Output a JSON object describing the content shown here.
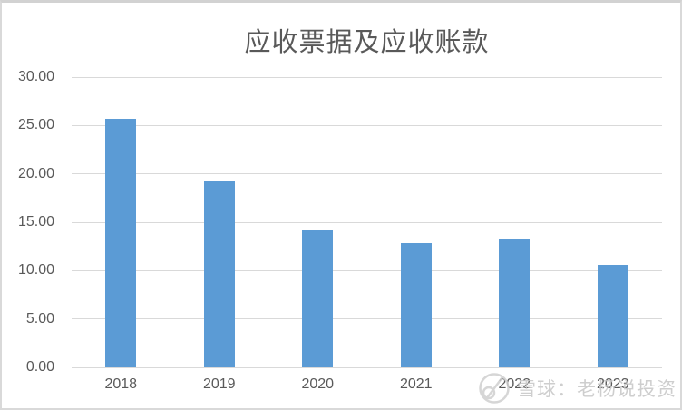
{
  "title": "应收票据及应收账款",
  "chart_data": {
    "type": "bar",
    "title": "应收票据及应收账款",
    "categories": [
      "2018",
      "2019",
      "2020",
      "2021",
      "2022",
      "2023"
    ],
    "values": [
      25.7,
      19.3,
      14.2,
      12.8,
      13.2,
      10.6
    ],
    "series_name": "应收票据及应收账款",
    "xlabel": "",
    "ylabel": "",
    "ylim": [
      0,
      30
    ],
    "ytick_values": [
      0,
      5,
      10,
      15,
      20,
      25,
      30
    ],
    "ytick_labels": [
      "0.00",
      "5.00",
      "10.00",
      "15.00",
      "20.00",
      "25.00",
      "30.00"
    ],
    "grid": true,
    "legend": "none",
    "bar_color": "#5b9bd5"
  },
  "watermark": {
    "icon": "xueqiu-snowball-logo-icon",
    "source_label": "雪球：老杨说投资"
  },
  "colors": {
    "bar": "#5b9bd5",
    "gridline": "#d9d9d9",
    "axis_text": "#595959",
    "title_text": "#595959",
    "frame_border": "#d9d9d9",
    "watermark_text": "#c6c6c6"
  }
}
